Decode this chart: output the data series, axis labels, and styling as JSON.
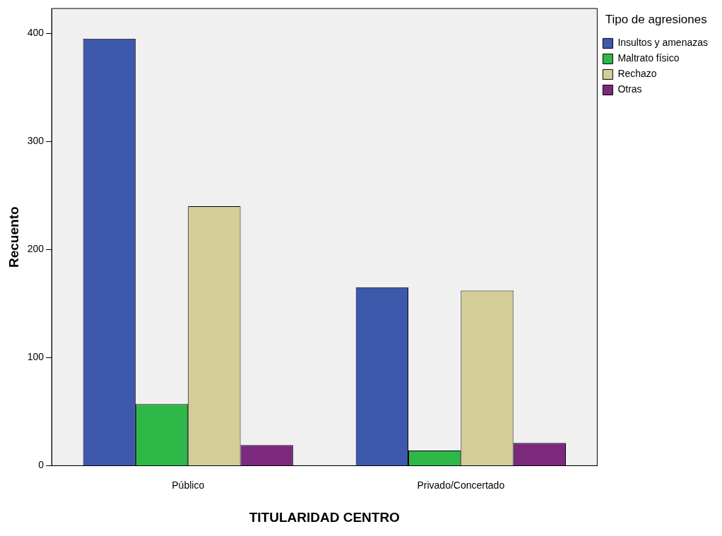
{
  "chart_data": {
    "type": "bar",
    "xlabel": "TITULARIDAD CENTRO",
    "ylabel": "Recuento",
    "legend_title": "Tipo de agresiones",
    "legend": "top right",
    "categories": [
      "Público",
      "Privado/Concertado"
    ],
    "series": [
      {
        "name": "Insultos y amenazas",
        "color": "#3e58ac",
        "values": [
          395,
          165
        ]
      },
      {
        "name": "Maltrato físico",
        "color": "#2eb848",
        "values": [
          57,
          14
        ]
      },
      {
        "name": "Rechazo",
        "color": "#d3ce97",
        "values": [
          240,
          162
        ]
      },
      {
        "name": "Otras",
        "color": "#7b287d",
        "values": [
          19,
          21
        ]
      }
    ],
    "ylim": [
      0,
      423
    ],
    "yticks": [
      0,
      100,
      200,
      300,
      400
    ],
    "grid": false
  }
}
